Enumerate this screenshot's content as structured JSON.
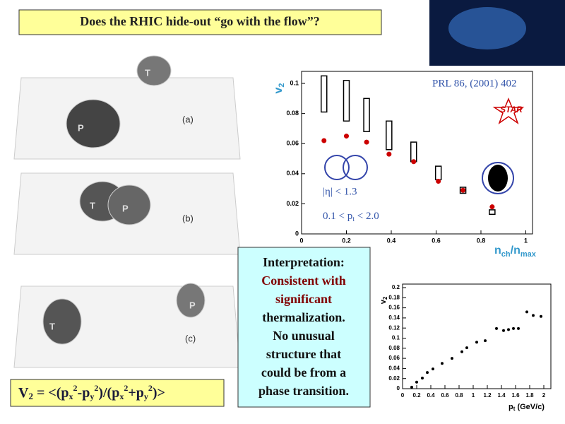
{
  "title": "Does the RHIC hide-out “go with the flow”?",
  "panels": [
    "(a)",
    "(b)",
    "(c)"
  ],
  "blob_labels": [
    "T",
    "P",
    "T",
    "P",
    "T",
    "P"
  ],
  "interpretation": [
    "Interpretation:",
    "Consistent with",
    "significant",
    "thermalization.",
    "No unusual",
    "structure that",
    "could be from a",
    "phase transition."
  ],
  "formula": [
    "V",
    "2",
    " = <(p",
    "x",
    "2",
    "-p",
    "y",
    "2",
    ")/(p",
    "x",
    "2",
    "+p",
    "y",
    "2",
    ")>"
  ],
  "chart_data": [
    {
      "type": "scatter",
      "ylabel": [
        "v",
        "2"
      ],
      "xlabel": [
        "n",
        "ch",
        "/n",
        "max"
      ],
      "reference": "PRL 86, (2001) 402",
      "experiment": "STAR",
      "eta_cut": "|η| < 1.3",
      "pt_cut": [
        "0.1 < p",
        "t",
        " < 2.0"
      ],
      "x": [
        0.1,
        0.2,
        0.29,
        0.39,
        0.5,
        0.61,
        0.72,
        0.85
      ],
      "series": [
        {
          "color": "#cc0000",
          "values": [
            0.062,
            0.065,
            0.061,
            0.053,
            0.048,
            0.035,
            0.029,
            0.018
          ]
        }
      ],
      "hydro_low": [
        0.081,
        0.075,
        0.068,
        0.056,
        0.048,
        0.036,
        0.027,
        0.013
      ],
      "hydro_high": [
        0.105,
        0.102,
        0.09,
        0.075,
        0.061,
        0.045,
        0.031,
        0.016
      ],
      "xlim": [
        0,
        1.03
      ],
      "ylim": [
        0,
        0.108
      ],
      "xticks": [
        0,
        0.2,
        0.4,
        0.6,
        0.8,
        1
      ],
      "yticks": [
        0,
        0.02,
        0.04,
        0.06,
        0.08,
        0.1
      ]
    },
    {
      "type": "scatter",
      "ylabel": [
        "v",
        "2"
      ],
      "xlabel": [
        "p",
        "t",
        " (GeV/c)"
      ],
      "x": [
        0.13,
        0.2,
        0.28,
        0.35,
        0.43,
        0.56,
        0.7,
        0.84,
        0.91,
        1.05,
        1.17,
        1.33,
        1.43,
        1.5,
        1.57,
        1.64,
        1.76,
        1.85,
        1.96
      ],
      "series": [
        {
          "color": "#000000",
          "values": [
            0.003,
            0.013,
            0.021,
            0.032,
            0.039,
            0.05,
            0.06,
            0.073,
            0.081,
            0.092,
            0.095,
            0.119,
            0.115,
            0.117,
            0.119,
            0.119,
            0.152,
            0.145,
            0.143
          ]
        }
      ],
      "xlim": [
        0,
        2.1
      ],
      "ylim": [
        0,
        0.207
      ],
      "xticks": [
        0,
        0.2,
        0.4,
        0.6,
        0.8,
        1,
        1.2,
        1.4,
        1.6,
        1.8,
        2
      ],
      "yticks": [
        0,
        0.02,
        0.04,
        0.06,
        0.08,
        0.1,
        0.12,
        0.14,
        0.16,
        0.18,
        0.2
      ]
    }
  ]
}
